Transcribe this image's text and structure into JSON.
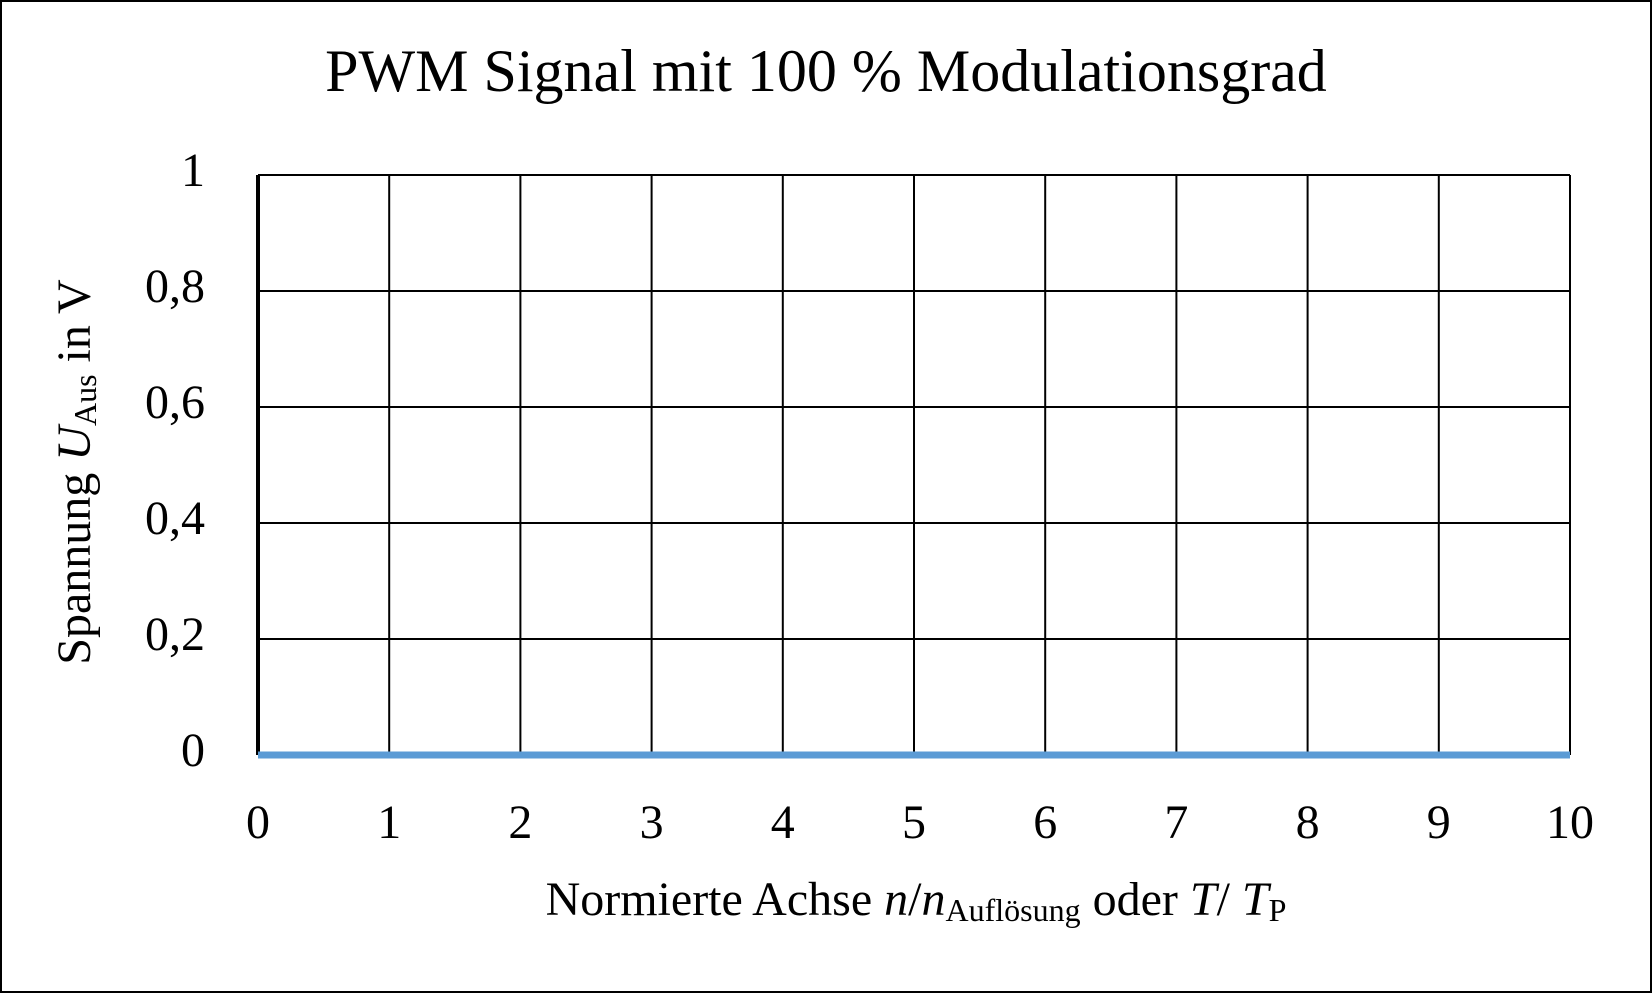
{
  "chart_data": {
    "type": "line",
    "title": "PWM Signal mit 100 % Modulationsgrad",
    "ylabel": [
      "Spannung ",
      "U",
      "Aus",
      " in V"
    ],
    "xlabel": [
      "Normierte Achse ",
      "n",
      "/",
      "n",
      "Auflösung",
      " oder ",
      "T",
      "/ ",
      "T",
      "P"
    ],
    "x": [
      0,
      10
    ],
    "series": [
      {
        "color": "#5b9bd5",
        "values": [
          0,
          0
        ]
      }
    ],
    "xlim": [
      0,
      10
    ],
    "xticks": [
      0,
      1,
      2,
      3,
      4,
      5,
      6,
      7,
      8,
      9,
      10
    ],
    "ylim": [
      0,
      1
    ],
    "yticks": [
      0,
      {
        "value": 0.2,
        "label": "0,2"
      },
      {
        "value": 0.4,
        "label": "0,4"
      },
      {
        "value": 0.6,
        "label": "0,6"
      },
      {
        "value": 0.8,
        "label": "0,8"
      },
      1
    ],
    "grid": true
  }
}
